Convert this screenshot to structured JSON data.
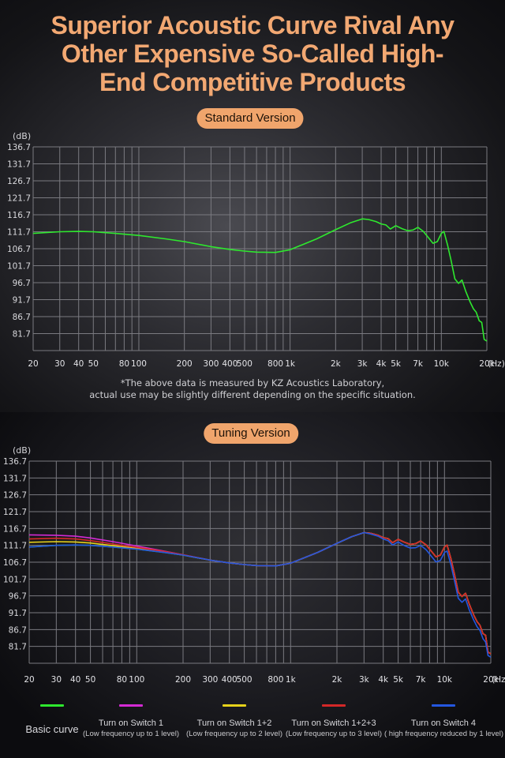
{
  "headline": {
    "line1": "Superior Acoustic Curve Rival Any",
    "line2": "Other Expensive So-Called High-",
    "line3": "End Competitive Products"
  },
  "colors": {
    "headline": "#f2a872",
    "pill": "#f0a56c",
    "grid": "#7a7a80",
    "basic": "#2ee82e",
    "switch1": "#d42ad4",
    "switch12": "#e6d21a",
    "switch123": "#d42828",
    "switch4": "#2457e0"
  },
  "note": {
    "line1": "*The above data is measured by KZ Acoustics Laboratory,",
    "line2": "actual use may be slightly different depending on the specific situation."
  },
  "legend": [
    {
      "color_key": "basic",
      "label": "Basic curve",
      "sub": ""
    },
    {
      "color_key": "switch1",
      "label": "Turn on Switch 1",
      "sub": "(Low frequency up to 1 level)"
    },
    {
      "color_key": "switch12",
      "label": "Turn on Switch 1+2",
      "sub": "(Low frequency up to 2 level)"
    },
    {
      "color_key": "switch123",
      "label": "Turn on Switch 1+2+3",
      "sub": "(Low frequency up to 3 level)"
    },
    {
      "color_key": "switch4",
      "label": "Turn on Switch 4",
      "sub": "( high frequency reduced by 1 level)"
    }
  ],
  "chart_data": [
    {
      "type": "line",
      "title": "Standard Version",
      "ylabel": "(dB)",
      "xunit": "(Hz)",
      "xscale": "log",
      "grid": true,
      "ylim": [
        76.7,
        136.7
      ],
      "xlim": [
        20,
        20000
      ],
      "yticks": [
        "136.7",
        "131.7",
        "126.7",
        "121.7",
        "116.7",
        "111.7",
        "106.7",
        "101.7",
        "96.7",
        "91.7",
        "86.7",
        "81.7"
      ],
      "xticks": [
        {
          "value": 20,
          "label": "20"
        },
        {
          "value": 30,
          "label": "30"
        },
        {
          "value": 40,
          "label": "40"
        },
        {
          "value": 50,
          "label": "50"
        },
        {
          "value": 80,
          "label": "80"
        },
        {
          "value": 100,
          "label": "100"
        },
        {
          "value": 200,
          "label": "200"
        },
        {
          "value": 300,
          "label": "300"
        },
        {
          "value": 400,
          "label": "400"
        },
        {
          "value": 500,
          "label": "500"
        },
        {
          "value": 800,
          "label": "800"
        },
        {
          "value": 1000,
          "label": "1k"
        },
        {
          "value": 2000,
          "label": "2k"
        },
        {
          "value": 3000,
          "label": "3k"
        },
        {
          "value": 4000,
          "label": "4k"
        },
        {
          "value": 5000,
          "label": "5k"
        },
        {
          "value": 7000,
          "label": "7k"
        },
        {
          "value": 10000,
          "label": "10k"
        },
        {
          "value": 20000,
          "label": "20k"
        }
      ],
      "series": [
        {
          "color_key": "basic",
          "x": [
            20,
            30,
            40,
            50,
            70,
            100,
            150,
            200,
            300,
            400,
            500,
            600,
            800,
            1000,
            1500,
            2000,
            2500,
            3000,
            3300,
            3700,
            4000,
            4300,
            4600,
            5000,
            5500,
            6000,
            6500,
            7000,
            7600,
            8200,
            8800,
            9400,
            10000,
            10400,
            11000,
            11600,
            12300,
            13000,
            13700,
            14500,
            15500,
            16300,
            17000,
            17800,
            18500,
            19200,
            20000
          ],
          "y": [
            111.2,
            111.7,
            111.8,
            111.7,
            111.2,
            110.6,
            109.6,
            108.8,
            107.3,
            106.5,
            106.0,
            105.7,
            105.6,
            106.4,
            109.6,
            112.3,
            114.3,
            115.5,
            115.3,
            114.7,
            114.0,
            113.7,
            112.5,
            113.5,
            112.6,
            112.0,
            112.2,
            113.0,
            111.8,
            110.0,
            108.3,
            108.8,
            111.2,
            111.8,
            107.8,
            103.2,
            97.8,
            96.5,
            97.5,
            94.2,
            91.0,
            89.0,
            88.0,
            85.5,
            85.0,
            80.0,
            79.5
          ]
        }
      ]
    },
    {
      "type": "line",
      "title": "Tuning Version",
      "ylabel": "(dB)",
      "xunit": "(Hz)",
      "xscale": "log",
      "grid": true,
      "ylim": [
        76.7,
        136.7
      ],
      "xlim": [
        20,
        20000
      ],
      "yticks": [
        "136.7",
        "131.7",
        "126.7",
        "121.7",
        "116.7",
        "111.7",
        "106.7",
        "101.7",
        "96.7",
        "91.7",
        "86.7",
        "81.7"
      ],
      "xticks": [
        {
          "value": 20,
          "label": "20"
        },
        {
          "value": 30,
          "label": "30"
        },
        {
          "value": 40,
          "label": "40"
        },
        {
          "value": 50,
          "label": "50"
        },
        {
          "value": 80,
          "label": "80"
        },
        {
          "value": 100,
          "label": "100"
        },
        {
          "value": 200,
          "label": "200"
        },
        {
          "value": 300,
          "label": "300"
        },
        {
          "value": 400,
          "label": "400"
        },
        {
          "value": 500,
          "label": "500"
        },
        {
          "value": 800,
          "label": "800"
        },
        {
          "value": 1000,
          "label": "1k"
        },
        {
          "value": 2000,
          "label": "2k"
        },
        {
          "value": 3000,
          "label": "3k"
        },
        {
          "value": 4000,
          "label": "4k"
        },
        {
          "value": 5000,
          "label": "5k"
        },
        {
          "value": 7000,
          "label": "7k"
        },
        {
          "value": 10000,
          "label": "10k"
        },
        {
          "value": 20000,
          "label": "20k"
        }
      ],
      "series": [
        {
          "color_key": "basic",
          "x": [
            20,
            30,
            40,
            50,
            70,
            100,
            150,
            200,
            300,
            400,
            500,
            600,
            800,
            1000,
            1500,
            2000,
            2500,
            3000,
            3300,
            3700,
            4000,
            4300,
            4600,
            5000,
            5500,
            6000,
            6500,
            7000,
            7600,
            8200,
            8800,
            9400,
            10000,
            10400,
            11000,
            11600,
            12300,
            13000,
            13700,
            14500,
            15500,
            16300,
            17000,
            17800,
            18500,
            19200,
            20000
          ],
          "y": [
            111.2,
            111.7,
            111.8,
            111.7,
            111.2,
            110.6,
            109.6,
            108.8,
            107.3,
            106.5,
            106.0,
            105.7,
            105.6,
            106.4,
            109.6,
            112.3,
            114.3,
            115.5,
            115.3,
            114.7,
            114.0,
            113.7,
            112.5,
            113.5,
            112.6,
            112.0,
            112.2,
            113.0,
            111.8,
            110.0,
            108.3,
            108.8,
            111.2,
            111.8,
            107.8,
            103.2,
            97.8,
            96.5,
            97.5,
            94.2,
            91.0,
            89.0,
            88.0,
            85.5,
            85.0,
            80.0,
            79.5
          ]
        },
        {
          "color_key": "switch1",
          "x": [
            20,
            30,
            40,
            50,
            70,
            100,
            150,
            200,
            300,
            400,
            500,
            600,
            800,
            1000,
            1500,
            2000,
            2500,
            3000,
            3300,
            3700,
            4000,
            4300,
            4600,
            5000,
            5500,
            6000,
            6500,
            7000,
            7600,
            8200,
            8800,
            9400,
            10000,
            10400,
            11000,
            11600,
            12300,
            13000,
            13700,
            14500,
            15500,
            16300,
            17000,
            17800,
            18500,
            19200,
            20000
          ],
          "y": [
            114.8,
            114.7,
            114.4,
            113.9,
            112.8,
            111.5,
            110.0,
            108.9,
            107.3,
            106.5,
            106.0,
            105.7,
            105.6,
            106.4,
            109.6,
            112.3,
            114.3,
            115.5,
            115.3,
            114.7,
            114.0,
            113.7,
            112.5,
            113.5,
            112.6,
            112.0,
            112.2,
            113.0,
            111.8,
            110.0,
            108.3,
            108.8,
            111.2,
            111.8,
            107.8,
            103.2,
            97.8,
            96.5,
            97.5,
            94.2,
            91.0,
            89.0,
            88.0,
            85.5,
            85.0,
            80.0,
            79.5
          ]
        },
        {
          "color_key": "switch12",
          "x": [
            20,
            30,
            40,
            50,
            70,
            100,
            150,
            200,
            300,
            400,
            500,
            600,
            800,
            1000,
            1500,
            2000,
            2500,
            3000,
            3300,
            3700,
            4000,
            4300,
            4600,
            5000,
            5500,
            6000,
            6500,
            7000,
            7600,
            8200,
            8800,
            9400,
            10000,
            10400,
            11000,
            11600,
            12300,
            13000,
            13700,
            14500,
            15500,
            16300,
            17000,
            17800,
            18500,
            19200,
            20000
          ],
          "y": [
            112.6,
            112.8,
            112.7,
            112.4,
            111.6,
            110.8,
            109.7,
            108.8,
            107.3,
            106.5,
            106.0,
            105.7,
            105.6,
            106.4,
            109.6,
            112.3,
            114.3,
            115.5,
            115.3,
            114.7,
            114.0,
            113.7,
            112.5,
            113.5,
            112.6,
            112.0,
            112.2,
            113.0,
            111.8,
            110.0,
            108.3,
            108.8,
            111.2,
            111.8,
            107.8,
            103.2,
            97.8,
            96.5,
            97.5,
            94.2,
            91.0,
            89.0,
            88.0,
            85.5,
            85.0,
            80.0,
            79.5
          ]
        },
        {
          "color_key": "switch123",
          "x": [
            20,
            30,
            40,
            50,
            70,
            100,
            150,
            200,
            300,
            400,
            500,
            600,
            800,
            1000,
            1500,
            2000,
            2500,
            3000,
            3300,
            3700,
            4000,
            4300,
            4600,
            5000,
            5500,
            6000,
            6500,
            7000,
            7600,
            8200,
            8800,
            9400,
            10000,
            10400,
            11000,
            11600,
            12300,
            13000,
            13700,
            14500,
            15500,
            16300,
            17000,
            17800,
            18500,
            19200,
            20000
          ],
          "y": [
            113.6,
            113.8,
            113.6,
            113.1,
            112.1,
            111.1,
            109.9,
            108.9,
            107.3,
            106.5,
            106.0,
            105.7,
            105.6,
            106.4,
            109.6,
            112.3,
            114.3,
            115.5,
            115.3,
            114.7,
            114.0,
            113.7,
            112.5,
            113.5,
            112.6,
            112.0,
            112.2,
            113.0,
            111.8,
            110.0,
            108.3,
            108.8,
            111.2,
            111.8,
            107.8,
            103.2,
            97.8,
            96.5,
            97.5,
            94.2,
            91.0,
            89.0,
            88.0,
            85.5,
            85.0,
            80.0,
            79.5
          ]
        },
        {
          "color_key": "switch4",
          "x": [
            20,
            30,
            40,
            50,
            70,
            100,
            150,
            200,
            300,
            400,
            500,
            600,
            800,
            1000,
            1500,
            2000,
            2500,
            3000,
            3300,
            3700,
            4000,
            4300,
            4600,
            5000,
            5500,
            6000,
            6500,
            7000,
            7600,
            8200,
            8800,
            9400,
            10000,
            10400,
            11000,
            11600,
            12300,
            13000,
            13700,
            14500,
            15500,
            16300,
            17000,
            17800,
            18500,
            19200,
            20000
          ],
          "y": [
            111.2,
            111.7,
            111.8,
            111.7,
            111.2,
            110.6,
            109.6,
            108.8,
            107.3,
            106.5,
            106.0,
            105.7,
            105.6,
            106.4,
            109.6,
            112.3,
            114.3,
            115.5,
            115.1,
            114.4,
            113.6,
            113.1,
            111.8,
            112.7,
            111.6,
            110.9,
            111.0,
            111.7,
            110.4,
            108.5,
            106.8,
            107.2,
            109.6,
            110.0,
            106.0,
            101.3,
            96.0,
            94.8,
            95.8,
            92.5,
            89.5,
            87.5,
            86.5,
            84.0,
            83.0,
            79.0,
            78.5
          ]
        }
      ]
    }
  ]
}
